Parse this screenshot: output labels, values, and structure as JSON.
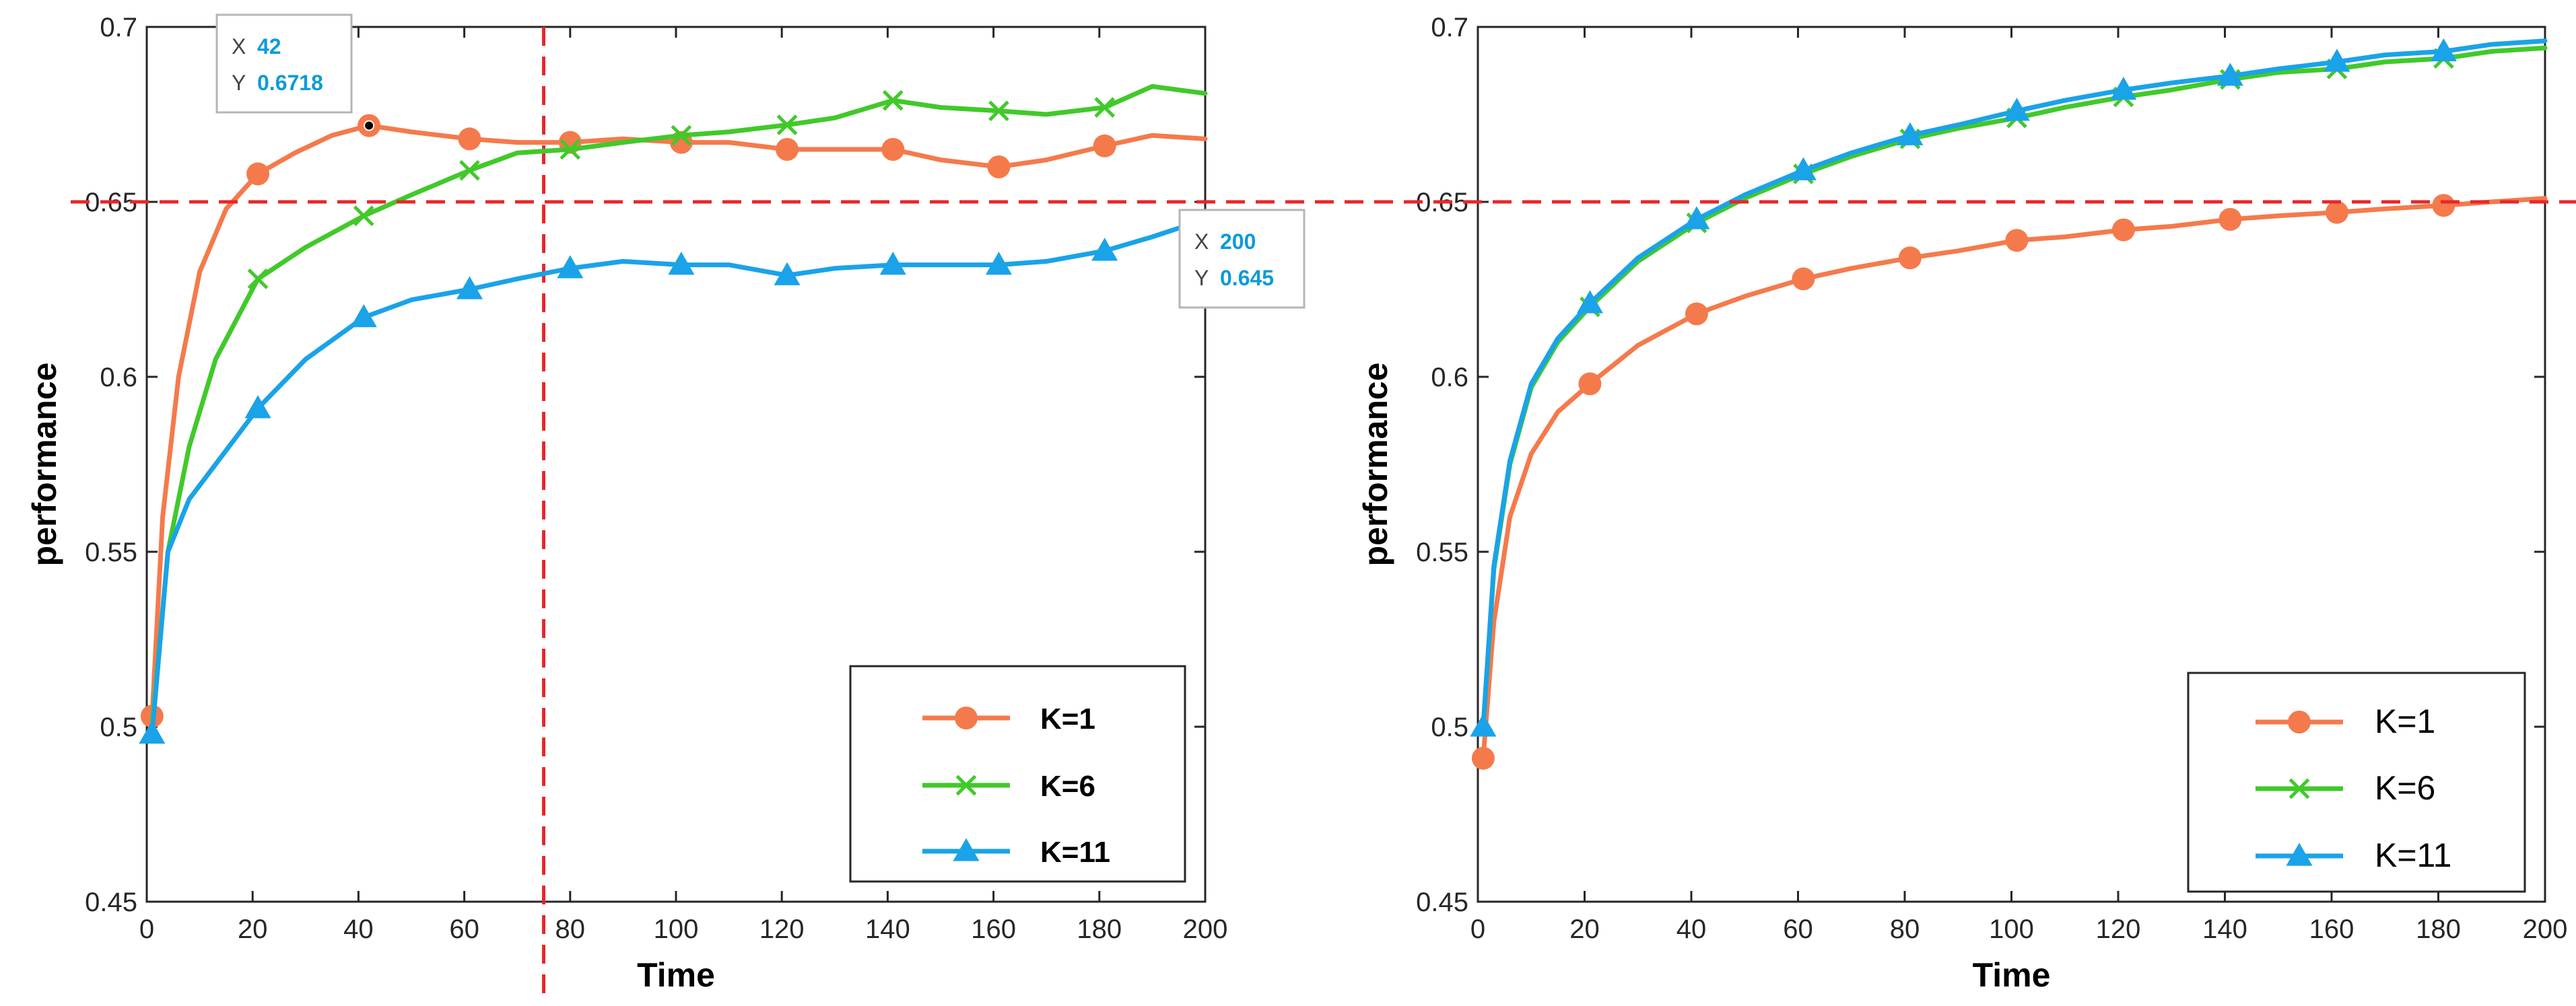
{
  "chart_data": [
    {
      "type": "line",
      "xlabel": "Time",
      "ylabel": "performance",
      "xlim": [
        0,
        200
      ],
      "ylim": [
        0.45,
        0.7
      ],
      "xticks": [
        0,
        20,
        40,
        60,
        80,
        100,
        120,
        140,
        160,
        180,
        200
      ],
      "yticks": [
        0.45,
        0.5,
        0.55,
        0.6,
        0.65,
        0.7
      ],
      "ytick_labels": [
        "0.45",
        "0.5",
        "0.55",
        "0.6",
        "0.65",
        "0.7"
      ],
      "legend_position": "bottom-right",
      "legend_bold": true,
      "grid": false,
      "series": [
        {
          "name": "K=1",
          "color": "#f47a4c",
          "marker": "circle",
          "x": [
            1,
            3,
            6,
            10,
            15,
            21,
            28,
            35,
            42,
            50,
            61,
            70,
            80,
            90,
            101,
            110,
            121,
            130,
            141,
            150,
            161,
            170,
            181,
            190,
            200
          ],
          "y": [
            0.503,
            0.56,
            0.6,
            0.63,
            0.648,
            0.658,
            0.664,
            0.669,
            0.6718,
            0.67,
            0.668,
            0.667,
            0.667,
            0.668,
            0.667,
            0.667,
            0.665,
            0.665,
            0.665,
            0.662,
            0.66,
            0.662,
            0.666,
            0.669,
            0.668
          ],
          "marker_x": [
            1,
            21,
            42,
            61,
            80,
            101,
            121,
            141,
            161,
            181
          ]
        },
        {
          "name": "K=6",
          "color": "#41c92a",
          "marker": "x",
          "x": [
            1,
            4,
            8,
            13,
            21,
            30,
            41,
            50,
            61,
            70,
            80,
            90,
            101,
            110,
            121,
            130,
            141,
            150,
            161,
            170,
            181,
            190,
            200
          ],
          "y": [
            0.5,
            0.55,
            0.58,
            0.605,
            0.628,
            0.637,
            0.646,
            0.652,
            0.659,
            0.664,
            0.665,
            0.667,
            0.669,
            0.67,
            0.672,
            0.674,
            0.679,
            0.677,
            0.676,
            0.675,
            0.677,
            0.683,
            0.681
          ],
          "marker_x": [
            21,
            41,
            61,
            80,
            101,
            121,
            141,
            161,
            181
          ]
        },
        {
          "name": "K=11",
          "color": "#1aa3e8",
          "marker": "triangle",
          "x": [
            1,
            4,
            8,
            13,
            21,
            30,
            41,
            50,
            61,
            70,
            80,
            90,
            101,
            110,
            121,
            130,
            141,
            150,
            161,
            170,
            181,
            190,
            200
          ],
          "y": [
            0.498,
            0.55,
            0.565,
            0.575,
            0.591,
            0.605,
            0.617,
            0.622,
            0.625,
            0.628,
            0.631,
            0.633,
            0.632,
            0.632,
            0.629,
            0.631,
            0.632,
            0.632,
            0.632,
            0.633,
            0.636,
            0.64,
            0.645
          ],
          "marker_x": [
            1,
            21,
            41,
            61,
            80,
            101,
            121,
            141,
            161,
            181
          ]
        }
      ],
      "reference_lines": [
        {
          "orientation": "horizontal",
          "value": 0.65,
          "color": "#e8262a",
          "style": "dashed"
        },
        {
          "orientation": "vertical",
          "value": 75,
          "color": "#e8262a",
          "style": "dashed"
        }
      ],
      "datatips": [
        {
          "x_label": "X",
          "x_value": "42",
          "y_label": "Y",
          "y_value": "0.6718",
          "x": 42,
          "y": 0.6718
        },
        {
          "x_label": "X",
          "x_value": "200",
          "y_label": "Y",
          "y_value": "0.645",
          "x": 200,
          "y": 0.645
        }
      ]
    },
    {
      "type": "line",
      "xlabel": "Time",
      "ylabel": "performance",
      "xlim": [
        0,
        200
      ],
      "ylim": [
        0.45,
        0.7
      ],
      "xticks": [
        0,
        20,
        40,
        60,
        80,
        100,
        120,
        140,
        160,
        180,
        200
      ],
      "yticks": [
        0.45,
        0.5,
        0.55,
        0.6,
        0.65,
        0.7
      ],
      "ytick_labels": [
        "0.45",
        "0.5",
        "0.55",
        "0.6",
        "0.65",
        "0.7"
      ],
      "legend_position": "bottom-right",
      "legend_bold": false,
      "grid": false,
      "series": [
        {
          "name": "K=1",
          "color": "#f47a4c",
          "marker": "circle",
          "x": [
            1,
            3,
            6,
            10,
            15,
            21,
            30,
            41,
            50,
            61,
            70,
            81,
            90,
            101,
            110,
            121,
            130,
            141,
            150,
            161,
            170,
            181,
            190,
            200
          ],
          "y": [
            0.491,
            0.53,
            0.56,
            0.578,
            0.59,
            0.598,
            0.609,
            0.618,
            0.623,
            0.628,
            0.631,
            0.634,
            0.636,
            0.639,
            0.64,
            0.642,
            0.643,
            0.645,
            0.646,
            0.647,
            0.648,
            0.649,
            0.65,
            0.651
          ],
          "marker_x": [
            1,
            21,
            41,
            61,
            81,
            101,
            121,
            141,
            161,
            181
          ]
        },
        {
          "name": "K=6",
          "color": "#41c92a",
          "marker": "x",
          "x": [
            1,
            3,
            6,
            10,
            15,
            21,
            30,
            41,
            50,
            61,
            70,
            81,
            90,
            101,
            110,
            121,
            130,
            141,
            150,
            161,
            170,
            181,
            190,
            200
          ],
          "y": [
            0.5,
            0.545,
            0.575,
            0.597,
            0.61,
            0.62,
            0.633,
            0.644,
            0.651,
            0.658,
            0.663,
            0.668,
            0.671,
            0.674,
            0.677,
            0.68,
            0.682,
            0.685,
            0.687,
            0.688,
            0.69,
            0.691,
            0.693,
            0.694
          ],
          "marker_x": [
            21,
            41,
            61,
            81,
            101,
            121,
            141,
            161,
            181
          ]
        },
        {
          "name": "K=11",
          "color": "#1aa3e8",
          "marker": "triangle",
          "x": [
            1,
            3,
            6,
            10,
            15,
            21,
            30,
            41,
            50,
            61,
            70,
            81,
            90,
            101,
            110,
            121,
            130,
            141,
            150,
            161,
            170,
            181,
            190,
            200
          ],
          "y": [
            0.5,
            0.546,
            0.576,
            0.598,
            0.611,
            0.621,
            0.634,
            0.645,
            0.652,
            0.659,
            0.664,
            0.669,
            0.672,
            0.676,
            0.679,
            0.682,
            0.684,
            0.686,
            0.688,
            0.69,
            0.692,
            0.693,
            0.695,
            0.696
          ],
          "marker_x": [
            1,
            21,
            41,
            61,
            81,
            101,
            121,
            141,
            161,
            181
          ]
        }
      ],
      "reference_lines": [
        {
          "orientation": "horizontal",
          "value": 0.65,
          "color": "#e8262a",
          "style": "dashed"
        }
      ],
      "datatips": []
    }
  ]
}
